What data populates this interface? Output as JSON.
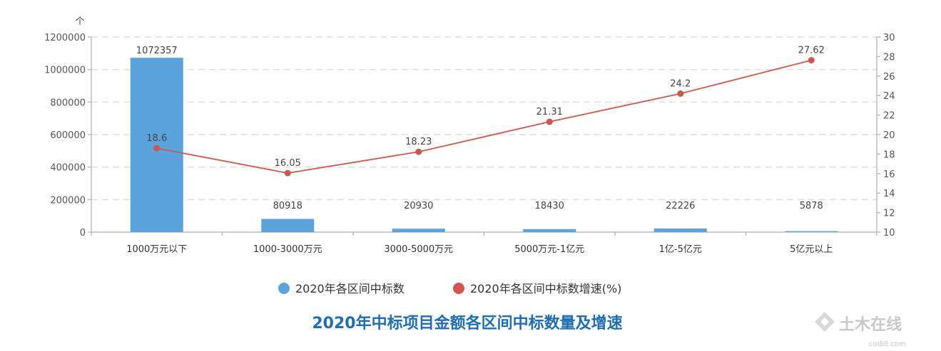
{
  "chart_data": {
    "type": "bar",
    "title": "2020年中标项目金额各区间中标数量及增速",
    "left_axis_unit": "个",
    "categories": [
      "1000万元以下",
      "1000-3000万元",
      "3000-5000万元",
      "5000万元-1亿元",
      "1亿-5亿元",
      "5亿元以上"
    ],
    "series": [
      {
        "name": "2020年各区间中标数",
        "type": "bar",
        "axis": "left",
        "color": "#5ba3dc",
        "values": [
          1072357,
          80918,
          20930,
          18430,
          22226,
          5878
        ],
        "labels": [
          "1072357",
          "80918",
          "20930",
          "18430",
          "22226",
          "5878"
        ]
      },
      {
        "name": "2020年各区间中标数增速(%)",
        "type": "line",
        "axis": "right",
        "color": "#d0574e",
        "values": [
          18.6,
          16.05,
          18.23,
          21.31,
          24.2,
          27.62
        ],
        "labels": [
          "18.6",
          "16.05",
          "18.23",
          "21.31",
          "24.2",
          "27.62"
        ]
      }
    ],
    "ylim": [
      0,
      1200000
    ],
    "yticks": [
      0,
      200000,
      400000,
      600000,
      800000,
      1000000,
      1200000
    ],
    "ytick_labels": [
      "0",
      "200000",
      "400000",
      "600000",
      "800000",
      "1000000",
      "1200000"
    ],
    "y2lim": [
      10,
      30
    ],
    "y2ticks": [
      10,
      12,
      14,
      16,
      18,
      20,
      22,
      24,
      26,
      28,
      30
    ],
    "y2tick_labels": [
      "10",
      "12",
      "14",
      "16",
      "18",
      "20",
      "22",
      "24",
      "26",
      "28",
      "30"
    ],
    "grid": true,
    "legend_position": "bottom-center"
  },
  "watermark": {
    "text": "土木在线",
    "sub": "coi88.com"
  }
}
